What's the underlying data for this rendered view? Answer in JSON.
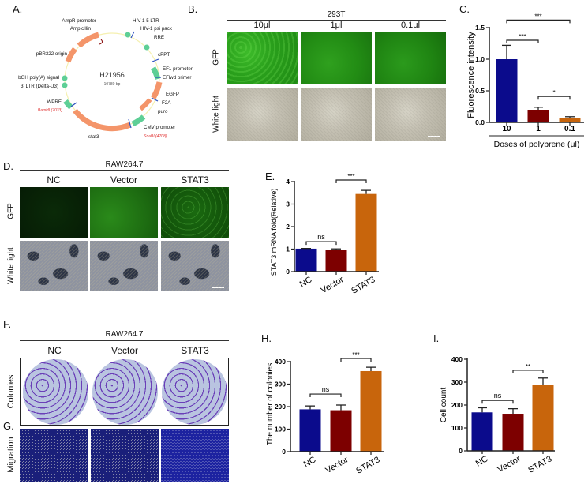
{
  "panel_labels": {
    "A": "A.",
    "B": "B.",
    "C": "C.",
    "D": "D.",
    "E": "E.",
    "F": "F.",
    "G": "G.",
    "H": "H.",
    "I": "I."
  },
  "plasmid": {
    "name": "H21956",
    "size": "10780 bp",
    "features": [
      "AmpR promoter",
      "Ampicillin",
      "pBR322 origin",
      "bGH poly(A) signal",
      "3' LTR (Delta-U3)",
      "WPRE",
      "stat3",
      "HIV-1 5 LTR",
      "HIV-1 psi pack",
      "RRE",
      "cPPT",
      "EF1 promoter",
      "EFlwd primer",
      "EGFP",
      "F2A",
      "puro",
      "CMV promoter"
    ],
    "sites": [
      "BamHI (7033)",
      "SnaBI (4708)"
    ],
    "colors": {
      "orange": "#f4956a",
      "green": "#5ecf96",
      "blue": "#2b4fc0",
      "red": "#e03030"
    }
  },
  "panel_b": {
    "title": "293T",
    "columns": [
      "10μl",
      "1μl",
      "0.1μl"
    ],
    "rows": [
      "GFP",
      "White light"
    ]
  },
  "panel_d": {
    "title": "RAW264.7",
    "columns": [
      "NC",
      "Vector",
      "STAT3"
    ],
    "rows": [
      "GFP",
      "White light"
    ]
  },
  "panel_f": {
    "title": "RAW264.7",
    "columns": [
      "NC",
      "Vector",
      "STAT3"
    ],
    "rows": [
      "Colonies"
    ]
  },
  "panel_g": {
    "rows": [
      "Migration"
    ]
  },
  "chart_data": [
    {
      "type": "bar",
      "panel": "C",
      "categories": [
        "10",
        "1",
        "0.1"
      ],
      "values": [
        1.0,
        0.2,
        0.07
      ],
      "errors": [
        0.22,
        0.04,
        0.02
      ],
      "xlabel": "Doses of polybrene (μl)",
      "ylabel": "Fluorescence intensity",
      "ylim": [
        0,
        1.5
      ],
      "ticks": [
        "0.0",
        "0.5",
        "1.0",
        "1.5"
      ],
      "tick_values": [
        0,
        0.5,
        1.0,
        1.5
      ],
      "colors": [
        "#0b0b8c",
        "#7d0000",
        "#c8650c"
      ],
      "significance": [
        {
          "pair": [
            0,
            2
          ],
          "label": "***",
          "y": 1.62
        },
        {
          "pair": [
            0,
            1
          ],
          "label": "***",
          "y": 1.3
        },
        {
          "pair": [
            1,
            2
          ],
          "label": "*",
          "y": 0.41
        }
      ]
    },
    {
      "type": "bar",
      "panel": "E",
      "categories": [
        "NC",
        "Vector",
        "STAT3"
      ],
      "values": [
        1.02,
        0.96,
        3.45
      ],
      "errors": [
        0.01,
        0.05,
        0.16
      ],
      "xlabel": "",
      "ylabel": "STAT3 mRNA fold(Relative)",
      "ylim": [
        0,
        4
      ],
      "ticks": [
        "0",
        "1",
        "2",
        "3",
        "4"
      ],
      "tick_values": [
        0,
        1,
        2,
        3,
        4
      ],
      "colors": [
        "#0b0b8c",
        "#7d0000",
        "#c8650c"
      ],
      "significance": [
        {
          "pair": [
            0,
            1
          ],
          "label": "ns",
          "y": 1.33
        },
        {
          "pair": [
            1,
            2
          ],
          "label": "***",
          "y": 4.07
        }
      ]
    },
    {
      "type": "bar",
      "panel": "H",
      "categories": [
        "NC",
        "Vector",
        "STAT3"
      ],
      "values": [
        188,
        184,
        358
      ],
      "errors": [
        15,
        23,
        17
      ],
      "xlabel": "",
      "ylabel": "The number of colonies",
      "ylim": [
        0,
        400
      ],
      "ticks": [
        "0",
        "100",
        "200",
        "300",
        "400"
      ],
      "tick_values": [
        0,
        100,
        200,
        300,
        400
      ],
      "colors": [
        "#0b0b8c",
        "#7d0000",
        "#c8650c"
      ],
      "significance": [
        {
          "pair": [
            0,
            1
          ],
          "label": "ns",
          "y": 256
        },
        {
          "pair": [
            1,
            2
          ],
          "label": "***",
          "y": 414
        }
      ]
    },
    {
      "type": "bar",
      "panel": "I",
      "categories": [
        "NC",
        "Vector",
        "STAT3"
      ],
      "values": [
        168,
        162,
        288
      ],
      "errors": [
        20,
        22,
        30
      ],
      "xlabel": "",
      "ylabel": "Cell count",
      "ylim": [
        0,
        400
      ],
      "ticks": [
        "0",
        "100",
        "200",
        "300",
        "400"
      ],
      "tick_values": [
        0,
        100,
        200,
        300,
        400
      ],
      "colors": [
        "#0b0b8c",
        "#7d0000",
        "#c8650c"
      ],
      "significance": [
        {
          "pair": [
            0,
            1
          ],
          "label": "ns",
          "y": 220
        },
        {
          "pair": [
            1,
            2
          ],
          "label": "**",
          "y": 352
        }
      ]
    }
  ]
}
